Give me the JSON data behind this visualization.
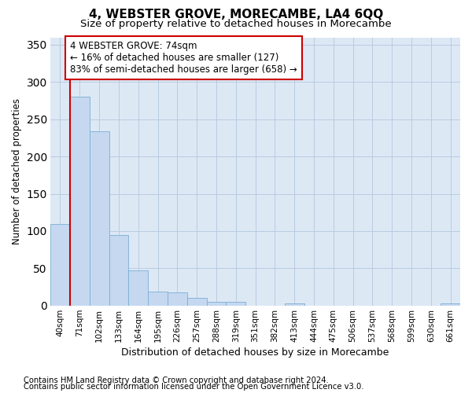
{
  "title": "4, WEBSTER GROVE, MORECAMBE, LA4 6QQ",
  "subtitle": "Size of property relative to detached houses in Morecambe",
  "xlabel": "Distribution of detached houses by size in Morecambe",
  "ylabel": "Number of detached properties",
  "categories": [
    "40sqm",
    "71sqm",
    "102sqm",
    "133sqm",
    "164sqm",
    "195sqm",
    "226sqm",
    "257sqm",
    "288sqm",
    "319sqm",
    "351sqm",
    "382sqm",
    "413sqm",
    "444sqm",
    "475sqm",
    "506sqm",
    "537sqm",
    "568sqm",
    "599sqm",
    "630sqm",
    "661sqm"
  ],
  "values": [
    109,
    280,
    234,
    95,
    47,
    19,
    18,
    10,
    5,
    5,
    0,
    0,
    3,
    0,
    0,
    0,
    0,
    0,
    0,
    0,
    3
  ],
  "bar_color": "#c5d8f0",
  "bar_edge_color": "#7bafd4",
  "highlight_color": "#cc0000",
  "highlight_index": 1,
  "ylim_max": 360,
  "yticks": [
    0,
    50,
    100,
    150,
    200,
    250,
    300,
    350
  ],
  "annotation_line1": "4 WEBSTER GROVE: 74sqm",
  "annotation_line2": "← 16% of detached houses are smaller (127)",
  "annotation_line3": "83% of semi-detached houses are larger (658) →",
  "ann_box_edge_color": "#cc0000",
  "footer_line1": "Contains HM Land Registry data © Crown copyright and database right 2024.",
  "footer_line2": "Contains public sector information licensed under the Open Government Licence v3.0.",
  "bg_color": "#ffffff",
  "axes_bg_color": "#dde8f5",
  "grid_color": "#b8cce0"
}
